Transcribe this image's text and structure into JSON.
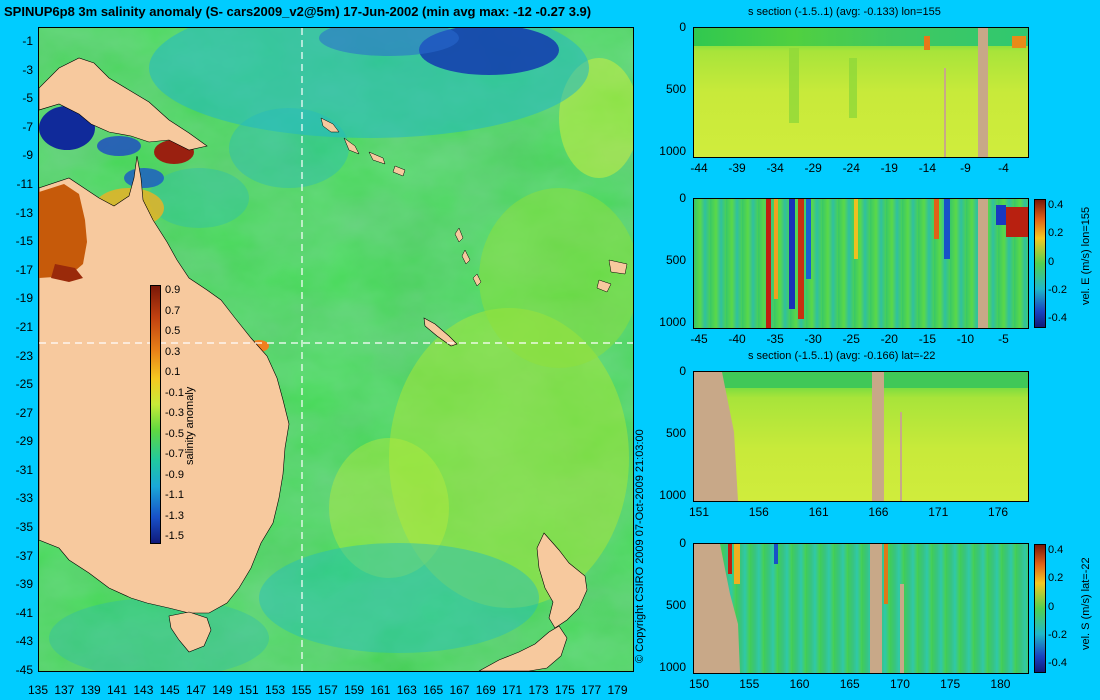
{
  "main_title": "SPINUP6p8 3m salinity anomaly (S- cars2009_v2@5m) 17-Jun-2002 (min avg max: -12 -0.27 3.9)",
  "copyright": "© Copyright CSIRO 2009  07-Oct-2009 21:03:00",
  "colors": {
    "background": "#00ccff",
    "land": "#f7c99e",
    "section_land": "#c8a888",
    "ocean_base": "#2ecf4a",
    "guide_line": "#ffffff"
  },
  "map": {
    "lat_ticks": [
      "-1",
      "-3",
      "-5",
      "-7",
      "-9",
      "-11",
      "-13",
      "-15",
      "-17",
      "-19",
      "-21",
      "-23",
      "-25",
      "-27",
      "-29",
      "-31",
      "-33",
      "-35",
      "-37",
      "-39",
      "-41",
      "-43",
      "-45"
    ],
    "lon_ticks": [
      "135",
      "137",
      "139",
      "141",
      "143",
      "145",
      "147",
      "149",
      "151",
      "153",
      "155",
      "157",
      "159",
      "161",
      "163",
      "165",
      "167",
      "169",
      "171",
      "173",
      "175",
      "177",
      "179"
    ],
    "section_lon": 155,
    "section_lat": -22,
    "colorbar": {
      "label": "salinity anomaly",
      "ticks": [
        "0.9",
        "0.7",
        "0.5",
        "0.3",
        "0.1",
        "-0.1",
        "-0.3",
        "-0.5",
        "-0.7",
        "-0.9",
        "-1.1",
        "-1.3",
        "-1.5"
      ]
    }
  },
  "panels": [
    {
      "title": "s section (-1.5..1) (avg: -0.133) lon=155",
      "y_ticks": [
        "0",
        "500",
        "1000"
      ],
      "x_ticks": [
        "-44",
        "-39",
        "-34",
        "-29",
        "-24",
        "-19",
        "-14",
        "-9",
        "-4"
      ],
      "colorbar": null
    },
    {
      "title": "",
      "y_ticks": [
        "0",
        "500",
        "1000"
      ],
      "x_ticks": [
        "-45",
        "-40",
        "-35",
        "-30",
        "-25",
        "-20",
        "-15",
        "-10",
        "-5"
      ],
      "colorbar": {
        "label": "vel. E (m/s) lon=155",
        "ticks": [
          "0.4",
          "0.2",
          "0",
          "-0.2",
          "-0.4"
        ]
      }
    },
    {
      "title": "s section (-1.5..1) (avg: -0.166) lat=-22",
      "y_ticks": [
        "0",
        "500",
        "1000"
      ],
      "x_ticks": [
        "151",
        "156",
        "161",
        "166",
        "171",
        "176"
      ],
      "colorbar": null
    },
    {
      "title": "",
      "y_ticks": [
        "0",
        "500",
        "1000"
      ],
      "x_ticks": [
        "150",
        "155",
        "160",
        "165",
        "170",
        "175",
        "180"
      ],
      "colorbar": {
        "label": "vel. S (m/s) lat=-22",
        "ticks": [
          "0.4",
          "0.2",
          "0",
          "-0.2",
          "-0.4"
        ]
      }
    }
  ]
}
